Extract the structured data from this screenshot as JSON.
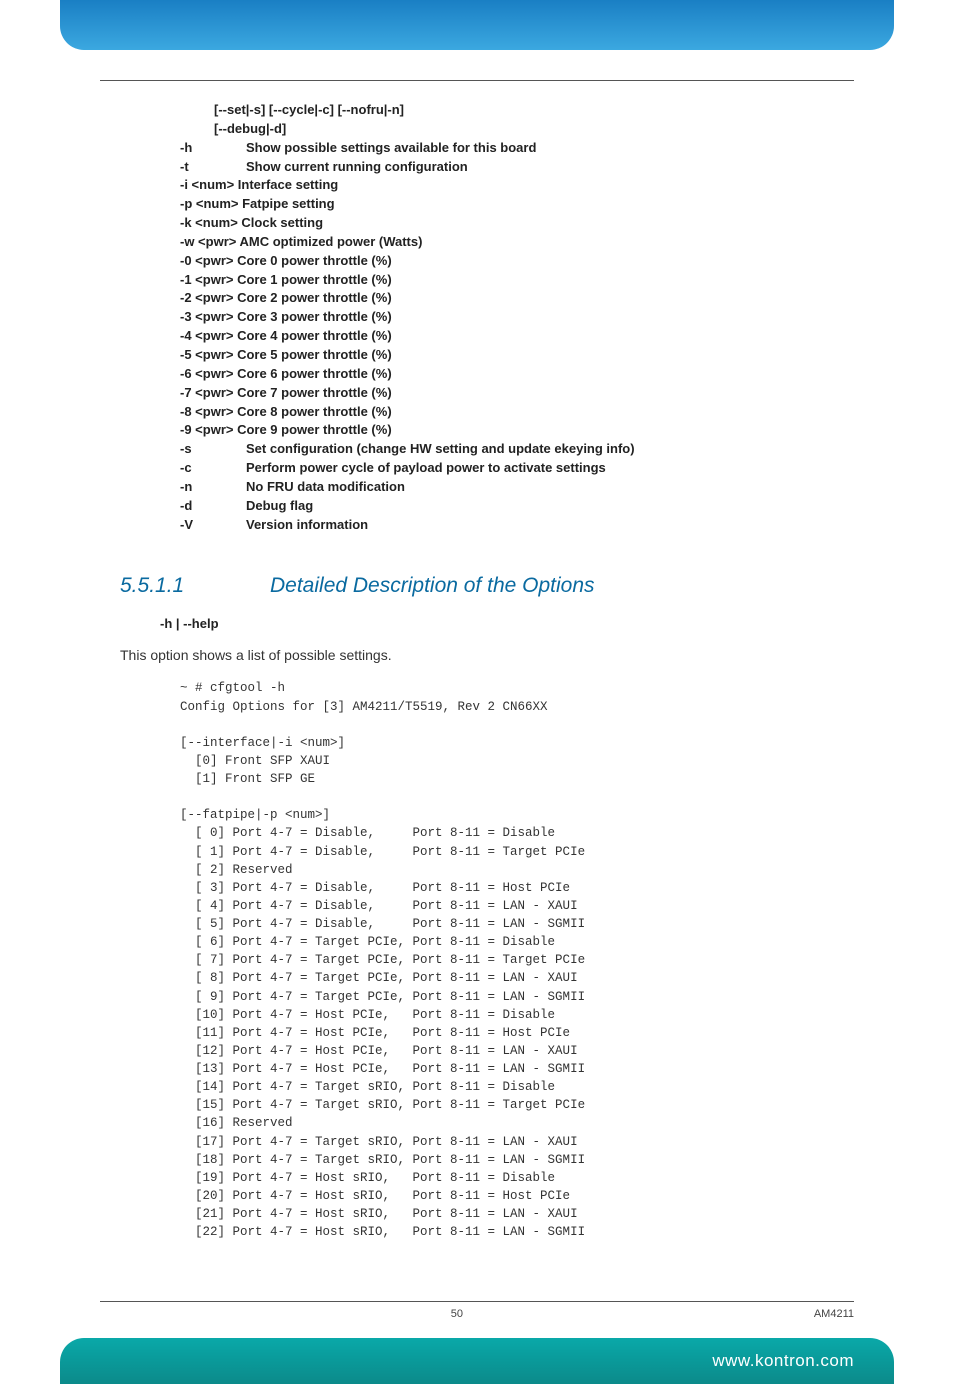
{
  "topBanner": {
    "gradientFrom": "#1a7fc4",
    "gradientTo": "#3ba8e0"
  },
  "optionLines": [
    {
      "flag": "",
      "desc": "[--set|-s] [--cycle|-c] [--nofru|-n]",
      "indent": true
    },
    {
      "flag": "",
      "desc": "[--debug|-d]",
      "indent": true
    },
    {
      "flag": "-h",
      "desc": "Show possible settings available for this board"
    },
    {
      "flag": "-t",
      "desc": "Show current running configuration"
    },
    {
      "flag": "-i <num>",
      "desc": "Interface setting",
      "tight": true
    },
    {
      "flag": "-p <num>",
      "desc": "Fatpipe setting",
      "tight": true
    },
    {
      "flag": "-k <num>",
      "desc": "Clock setting",
      "tight": true
    },
    {
      "flag": "-w <pwr>",
      "desc": "AMC optimized power (Watts)",
      "tight": true
    },
    {
      "flag": "-0 <pwr>",
      "desc": "Core 0 power throttle (%)",
      "tight": true
    },
    {
      "flag": "-1 <pwr>",
      "desc": "Core 1 power throttle (%)",
      "tight": true
    },
    {
      "flag": "-2 <pwr>",
      "desc": "Core 2 power throttle (%)",
      "tight": true
    },
    {
      "flag": "-3 <pwr>",
      "desc": "Core 3 power throttle (%)",
      "tight": true
    },
    {
      "flag": "-4 <pwr>",
      "desc": "Core 4 power throttle (%)",
      "tight": true
    },
    {
      "flag": "-5 <pwr>",
      "desc": "Core 5 power throttle (%)",
      "tight": true
    },
    {
      "flag": "-6 <pwr>",
      "desc": "Core 6 power throttle (%)",
      "tight": true
    },
    {
      "flag": "-7 <pwr>",
      "desc": "Core 7 power throttle (%)",
      "tight": true
    },
    {
      "flag": "-8 <pwr>",
      "desc": "Core 8 power throttle (%)",
      "tight": true
    },
    {
      "flag": "-9 <pwr>",
      "desc": "Core 9 power throttle (%)",
      "tight": true
    },
    {
      "flag": "-s",
      "desc": "Set configuration (change HW setting and update ekeying info)"
    },
    {
      "flag": "-c",
      "desc": "Perform power cycle of payload power to activate settings"
    },
    {
      "flag": "-n",
      "desc": "No FRU data modification"
    },
    {
      "flag": "-d",
      "desc": "Debug flag"
    },
    {
      "flag": "-V",
      "desc": "Version information"
    }
  ],
  "section": {
    "number": "5.5.1.1",
    "title": "Detailed Description of the Options",
    "color": "#0a6aa0"
  },
  "subhead": "-h | --help",
  "bodyText": "This option shows a list of possible settings.",
  "codeLines": [
    "~ # cfgtool -h",
    "Config Options for [3] AM4211/T5519, Rev 2 CN66XX",
    "",
    "[--interface|-i <num>]",
    "  [0] Front SFP XAUI",
    "  [1] Front SFP GE",
    "",
    "[--fatpipe|-p <num>]",
    "  [ 0] Port 4-7 = Disable,     Port 8-11 = Disable",
    "  [ 1] Port 4-7 = Disable,     Port 8-11 = Target PCIe",
    "  [ 2] Reserved",
    "  [ 3] Port 4-7 = Disable,     Port 8-11 = Host PCIe",
    "  [ 4] Port 4-7 = Disable,     Port 8-11 = LAN - XAUI",
    "  [ 5] Port 4-7 = Disable,     Port 8-11 = LAN - SGMII",
    "  [ 6] Port 4-7 = Target PCIe, Port 8-11 = Disable",
    "  [ 7] Port 4-7 = Target PCIe, Port 8-11 = Target PCIe",
    "  [ 8] Port 4-7 = Target PCIe, Port 8-11 = LAN - XAUI",
    "  [ 9] Port 4-7 = Target PCIe, Port 8-11 = LAN - SGMII",
    "  [10] Port 4-7 = Host PCIe,   Port 8-11 = Disable",
    "  [11] Port 4-7 = Host PCIe,   Port 8-11 = Host PCIe",
    "  [12] Port 4-7 = Host PCIe,   Port 8-11 = LAN - XAUI",
    "  [13] Port 4-7 = Host PCIe,   Port 8-11 = LAN - SGMII",
    "  [14] Port 4-7 = Target sRIO, Port 8-11 = Disable",
    "  [15] Port 4-7 = Target sRIO, Port 8-11 = Target PCIe",
    "  [16] Reserved",
    "  [17] Port 4-7 = Target sRIO, Port 8-11 = LAN - XAUI",
    "  [18] Port 4-7 = Target sRIO, Port 8-11 = LAN - SGMII",
    "  [19] Port 4-7 = Host sRIO,   Port 8-11 = Disable",
    "  [20] Port 4-7 = Host sRIO,   Port 8-11 = Host PCIe",
    "  [21] Port 4-7 = Host sRIO,   Port 8-11 = LAN - XAUI",
    "  [22] Port 4-7 = Host sRIO,   Port 8-11 = LAN - SGMII"
  ],
  "footer": {
    "pageNumber": "50",
    "docId": "AM4211"
  },
  "bottomBanner": {
    "url": "www.kontron.com",
    "gradientFrom": "#0aa9a9",
    "gradientTo": "#0b8a8a"
  }
}
